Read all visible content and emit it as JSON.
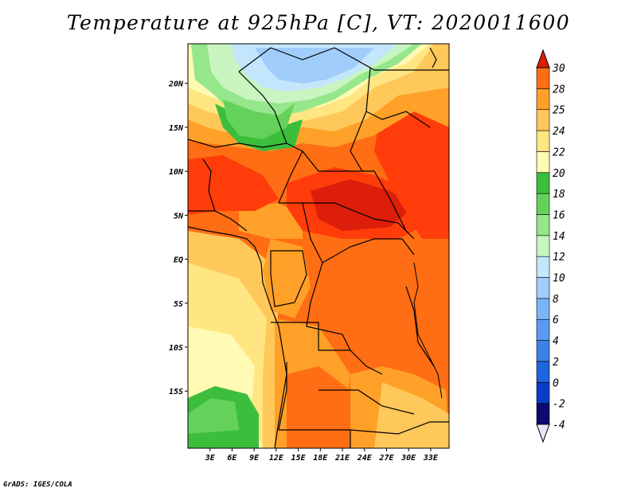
{
  "title": "Temperature at 925hPa [C], VT: 2020011600",
  "credit": "GrADS: IGES/COLA",
  "map": {
    "lon_range": [
      0,
      35.5
    ],
    "lat_range": [
      -21.5,
      24.5
    ],
    "lat_ticks": [
      {
        "value": 20,
        "label": "20N"
      },
      {
        "value": 15,
        "label": "15N"
      },
      {
        "value": 10,
        "label": "10N"
      },
      {
        "value": 5,
        "label": "5N"
      },
      {
        "value": 0,
        "label": "EQ"
      },
      {
        "value": -5,
        "label": "5S"
      },
      {
        "value": -10,
        "label": "10S"
      },
      {
        "value": -15,
        "label": "15S"
      }
    ],
    "lon_ticks": [
      {
        "value": 3,
        "label": "3E"
      },
      {
        "value": 6,
        "label": "6E"
      },
      {
        "value": 9,
        "label": "9E"
      },
      {
        "value": 12,
        "label": "12E"
      },
      {
        "value": 15,
        "label": "15E"
      },
      {
        "value": 18,
        "label": "18E"
      },
      {
        "value": 21,
        "label": "21E"
      },
      {
        "value": 24,
        "label": "24E"
      },
      {
        "value": 27,
        "label": "27E"
      },
      {
        "value": 30,
        "label": "30E"
      },
      {
        "value": 33,
        "label": "33E"
      }
    ]
  },
  "colorbar": {
    "levels": [
      "-4",
      "-2",
      "0",
      "2",
      "4",
      "6",
      "8",
      "10",
      "12",
      "14",
      "16",
      "18",
      "20",
      "22",
      "24",
      "25",
      "28",
      "30"
    ],
    "colors": [
      "#0a0a70",
      "#0a3cc8",
      "#1e64dc",
      "#3c82e6",
      "#5a9bf0",
      "#7ab4f5",
      "#a0cdfa",
      "#c3e6fc",
      "#c8f5c0",
      "#96e68c",
      "#64d25a",
      "#3cbe3c",
      "#fffab4",
      "#ffe682",
      "#ffc85a",
      "#ffa028",
      "#ff6e14",
      "#ff3c0a",
      "#dc1e0a"
    ]
  }
}
